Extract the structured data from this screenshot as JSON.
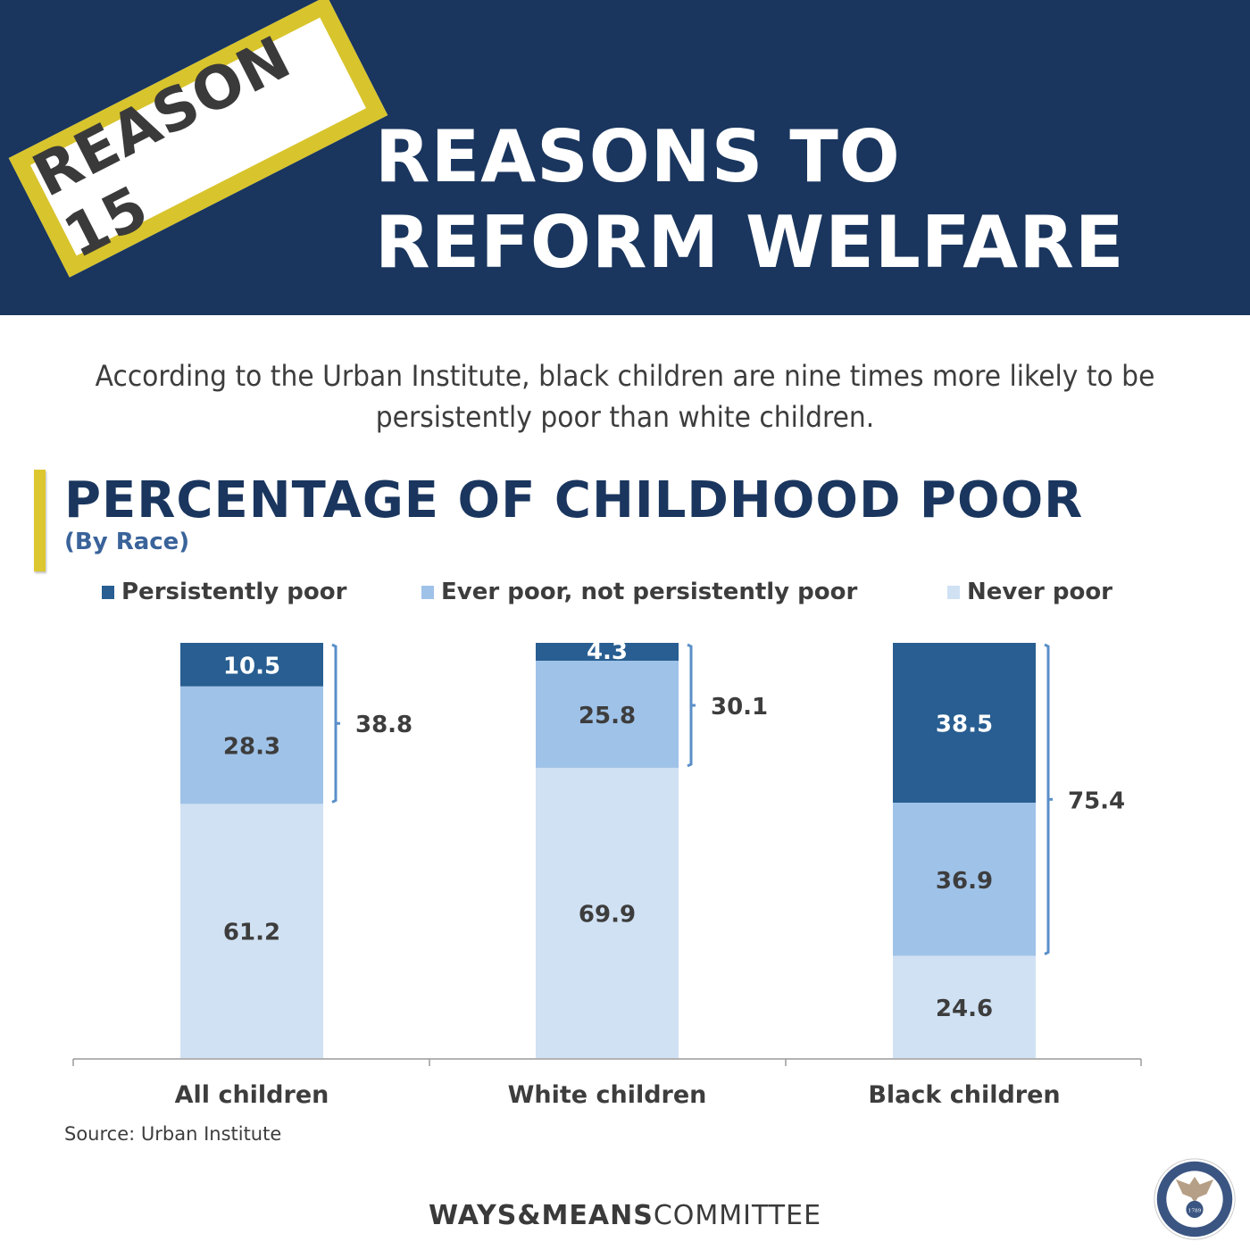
{
  "banner": {
    "stamp_text": "REASON 15",
    "headline_line1": "REASONS TO",
    "headline_line2": "REFORM WELFARE"
  },
  "intro_text_line1": "According to the Urban Institute, black children are nine times more likely to be",
  "intro_text_line2": "persistently poor than white children.",
  "colors": {
    "banner_bg": "#1a365e",
    "accent_yellow": "#ddc730",
    "persistently_poor": "#285e91",
    "ever_poor": "#9fc2e8",
    "never_poor": "#d0e1f3",
    "bracket": "#5a8fc8",
    "text_dark": "#3d3d3d"
  },
  "chart_data": {
    "type": "bar",
    "stacked": true,
    "title": "PERCENTAGE OF CHILDHOOD POOR",
    "subtitle": "(By Race)",
    "xlabel": "",
    "ylabel": "",
    "ylim": [
      0,
      100
    ],
    "grid": false,
    "legend_position": "top",
    "categories": [
      "All children",
      "White children",
      "Black children"
    ],
    "series": [
      {
        "name": "Persistently poor",
        "color": "#285e91",
        "label_color": "#ffffff",
        "values": [
          10.5,
          4.3,
          38.5
        ]
      },
      {
        "name": "Ever poor, not persistently poor",
        "color": "#9fc2e8",
        "label_color": "#3d3d3d",
        "values": [
          28.3,
          25.8,
          36.9
        ]
      },
      {
        "name": "Never poor",
        "color": "#d0e1f3",
        "label_color": "#3d3d3d",
        "values": [
          61.2,
          69.9,
          24.6
        ]
      }
    ],
    "bracket_totals": {
      "description": "Ever poor total (persistently + not persistently)",
      "values": [
        "38.8",
        "30.1",
        "75.4"
      ]
    },
    "source": "Source: Urban Institute"
  },
  "footer": {
    "brand_bold": "WAYS&MEANS",
    "brand_light": "COMMITTEE",
    "seal_label": "Committee on Ways and Means seal",
    "seal_year": "1789"
  }
}
